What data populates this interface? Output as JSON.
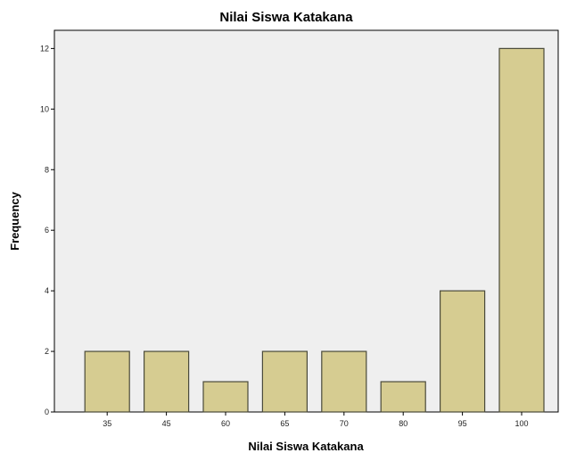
{
  "chart_data": {
    "type": "bar",
    "title": "Nilai Siswa Katakana",
    "xlabel": "Nilai Siswa Katakana",
    "ylabel": "Frequency",
    "categories": [
      "35",
      "45",
      "60",
      "65",
      "70",
      "80",
      "95",
      "100"
    ],
    "values": [
      2,
      2,
      1,
      2,
      2,
      1,
      4,
      12
    ],
    "ylim": [
      0,
      12.6
    ],
    "yticks": [
      "0",
      "2",
      "4",
      "6",
      "8",
      "10",
      "12"
    ],
    "grid": false,
    "legend": "none",
    "colors": {
      "bar_fill": "#d6cc91",
      "bar_stroke": "#4a4a3a",
      "plot_background": "#efefef"
    }
  }
}
